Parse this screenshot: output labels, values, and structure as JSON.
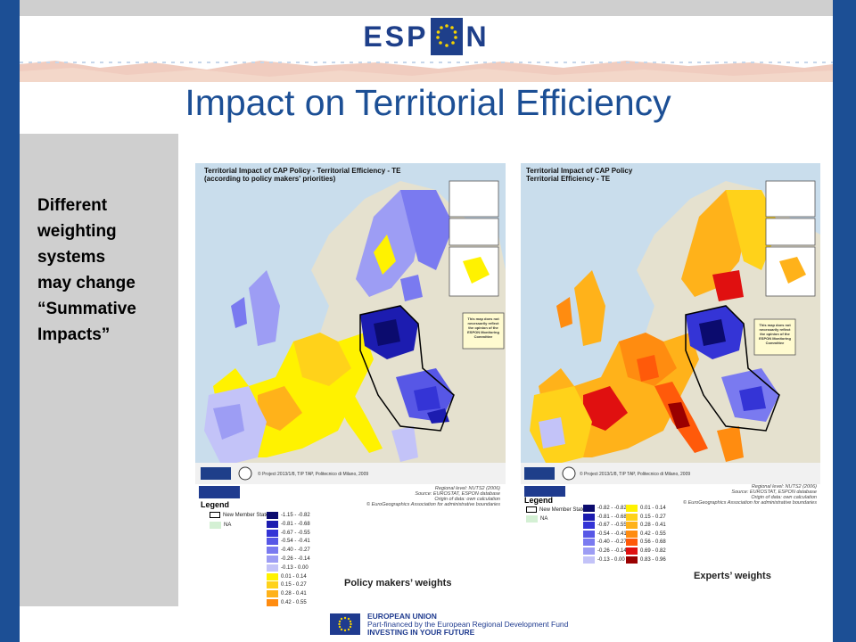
{
  "header": {
    "logo_text_left": "ESP",
    "logo_text_right": "N",
    "title": "Impact on Territorial Efficiency"
  },
  "left_panel": {
    "text_lines": [
      "Different",
      "weighting",
      "systems",
      "may change",
      "“Summative",
      "Impacts”"
    ]
  },
  "map_left": {
    "title_line1": "Territorial Impact of CAP Policy - Territorial Efficiency - TE",
    "title_line2": "(according to policy makers' priorities)",
    "note": "This map does not necessarily reflect the opinion of the ESPON Monitoring Committee",
    "credit": "© Project 2013/1/8, TIP TAP, Politecnico di Milano, 2009",
    "source_lines": [
      "Regional level: NUTS2 (2006)",
      "Source: EUROSTAT, ESPON database",
      "Origin of data: own calculation",
      "© EuroGeographics Association for administrative boundaries"
    ],
    "legend_title": "Legend",
    "legend_boundary": "New Member States",
    "legend_na": "NA",
    "legend_items": [
      {
        "label": "-1.15 - -0.82",
        "color": "#0b0b6e"
      },
      {
        "label": "-0.81 - -0.68",
        "color": "#1c1cb0"
      },
      {
        "label": "-0.67 - -0.55",
        "color": "#3434d6"
      },
      {
        "label": "-0.54 - -0.41",
        "color": "#5757e6"
      },
      {
        "label": "-0.40 - -0.27",
        "color": "#7a7af0"
      },
      {
        "label": "-0.26 - -0.14",
        "color": "#9d9df4"
      },
      {
        "label": "-0.13 - 0.00",
        "color": "#c3c3f8"
      },
      {
        "label": "0.01 - 0.14",
        "color": "#fff200"
      },
      {
        "label": "0.15 - 0.27",
        "color": "#ffd21a"
      },
      {
        "label": "0.28 - 0.41",
        "color": "#ffb21a"
      },
      {
        "label": "0.42 - 0.55",
        "color": "#ff8c10"
      }
    ],
    "caption": "Policy makers’ weights"
  },
  "map_right": {
    "title_line1": "Territorial Impact of CAP Policy",
    "title_line2": "Territorial Efficiency - TE",
    "note": "This map does not necessarily reflect the opinion of the ESPON Monitoring Committee",
    "credit": "© Project 2013/1/8, TIP TAP, Politecnico di Milano, 2009",
    "source_lines": [
      "Regional level: NUTS2 (2006)",
      "Source: EUROSTAT, ESPON database",
      "Origin of data: own calculation",
      "© EuroGeographics Association for administrative boundaries"
    ],
    "legend_title": "Legend",
    "legend_boundary": "New Member States",
    "legend_na": "NA",
    "legend_left": [
      {
        "label": "-0.82 - -0.82",
        "color": "#0b0b6e"
      },
      {
        "label": "-0.81 - -0.68",
        "color": "#1c1cb0"
      },
      {
        "label": "-0.67 - -0.55",
        "color": "#3434d6"
      },
      {
        "label": "-0.54 - -0.41",
        "color": "#5757e6"
      },
      {
        "label": "-0.40 - -0.27",
        "color": "#7a7af0"
      },
      {
        "label": "-0.26 - -0.14",
        "color": "#9d9df4"
      },
      {
        "label": "-0.13 - 0.00",
        "color": "#c3c3f8"
      }
    ],
    "legend_right": [
      {
        "label": "0.01 - 0.14",
        "color": "#fff200"
      },
      {
        "label": "0.15 - 0.27",
        "color": "#ffd21a"
      },
      {
        "label": "0.28 - 0.41",
        "color": "#ffb21a"
      },
      {
        "label": "0.42 - 0.55",
        "color": "#ff8c10"
      },
      {
        "label": "0.56 - 0.68",
        "color": "#ff5a0a"
      },
      {
        "label": "0.69 - 0.82",
        "color": "#e01010"
      },
      {
        "label": "0.83 - 0.96",
        "color": "#9a0000"
      }
    ],
    "caption": "Experts’ weights"
  },
  "footer": {
    "eu_line1": "EUROPEAN UNION",
    "eu_line2": "Part-financed by the European Regional Development Fund",
    "eu_line3": "INVESTING IN YOUR FUTURE"
  }
}
